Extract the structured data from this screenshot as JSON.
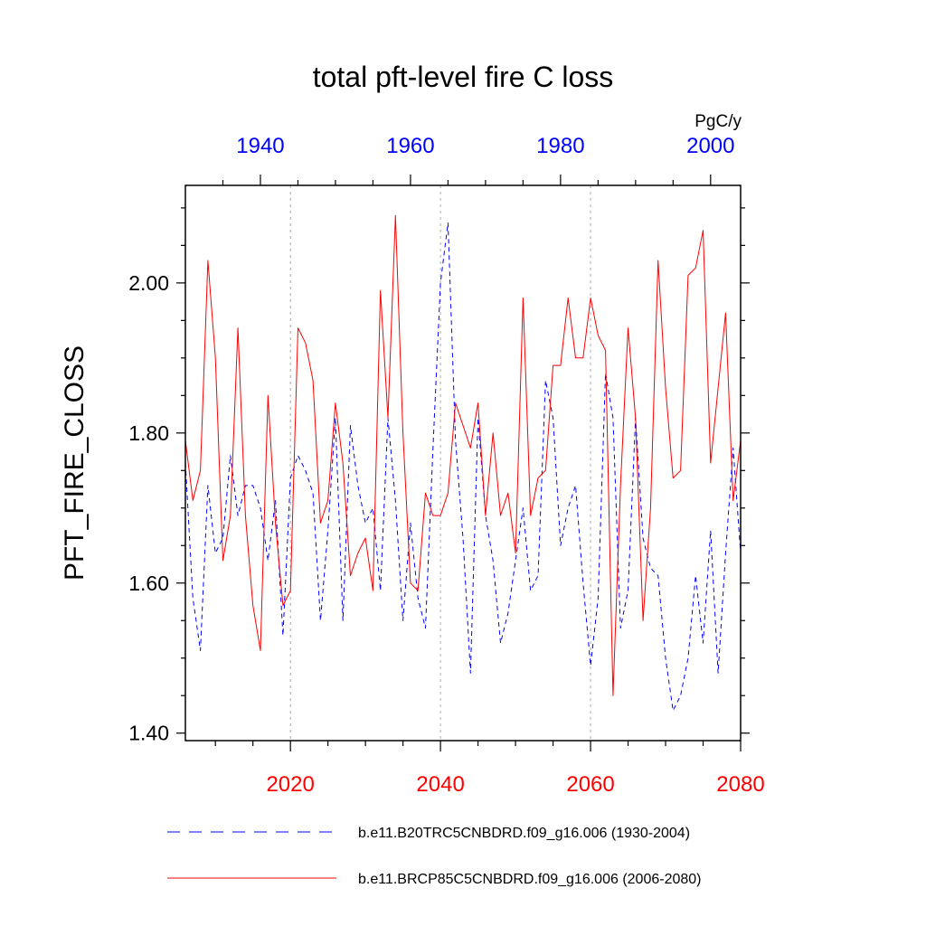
{
  "chart_data": {
    "type": "line",
    "title": "total pft-level fire C loss",
    "ylabel": "PFT_FIRE_CLOSS",
    "units": "PgC/y",
    "ylim": [
      1.39,
      2.13
    ],
    "yticks": [
      1.4,
      1.6,
      1.8,
      2.0
    ],
    "ytick_labels": [
      "1.40",
      "1.60",
      "1.80",
      "2.00"
    ],
    "bottom_axis": {
      "range": [
        2006,
        2080
      ],
      "ticks": [
        2020,
        2040,
        2060,
        2080
      ],
      "labels": [
        "2020",
        "2040",
        "2060",
        "2080"
      ],
      "color": "#ff0000"
    },
    "top_axis": {
      "range": [
        1930,
        2004
      ],
      "ticks": [
        1940,
        1960,
        1980,
        2000
      ],
      "labels": [
        "1940",
        "1960",
        "1980",
        "2000"
      ],
      "color": "#0000ff"
    },
    "gridlines_x": [
      2020,
      2040,
      2060
    ],
    "series": [
      {
        "name": "b.e11.B20TRC5CNBDRD.f09_g16.006 (1930-2004)",
        "axis": "top",
        "color": "#0000ff",
        "dash": "dashed",
        "x": [
          1930,
          1931,
          1932,
          1933,
          1934,
          1935,
          1936,
          1937,
          1938,
          1939,
          1940,
          1941,
          1942,
          1943,
          1944,
          1945,
          1946,
          1947,
          1948,
          1949,
          1950,
          1951,
          1952,
          1953,
          1954,
          1955,
          1956,
          1957,
          1958,
          1959,
          1960,
          1961,
          1962,
          1963,
          1964,
          1965,
          1966,
          1967,
          1968,
          1969,
          1970,
          1971,
          1972,
          1973,
          1974,
          1975,
          1976,
          1977,
          1978,
          1979,
          1980,
          1981,
          1982,
          1983,
          1984,
          1985,
          1986,
          1987,
          1988,
          1989,
          1990,
          1991,
          1992,
          1993,
          1994,
          1995,
          1996,
          1997,
          1998,
          1999,
          2000,
          2001,
          2002,
          2003,
          2004
        ],
        "values": [
          1.76,
          1.58,
          1.51,
          1.73,
          1.64,
          1.66,
          1.77,
          1.69,
          1.73,
          1.73,
          1.7,
          1.63,
          1.71,
          1.53,
          1.74,
          1.77,
          1.75,
          1.72,
          1.55,
          1.67,
          1.82,
          1.55,
          1.81,
          1.73,
          1.68,
          1.7,
          1.59,
          1.82,
          1.71,
          1.55,
          1.68,
          1.58,
          1.54,
          1.78,
          2.0,
          2.08,
          1.79,
          1.66,
          1.48,
          1.82,
          1.69,
          1.63,
          1.52,
          1.56,
          1.63,
          1.7,
          1.59,
          1.61,
          1.87,
          1.82,
          1.65,
          1.7,
          1.73,
          1.6,
          1.49,
          1.58,
          1.88,
          1.82,
          1.54,
          1.59,
          1.82,
          1.66,
          1.62,
          1.61,
          1.5,
          1.43,
          1.45,
          1.5,
          1.61,
          1.52,
          1.67,
          1.48,
          1.64,
          1.78,
          1.64
        ]
      },
      {
        "name": "b.e11.BRCP85C5CNBDRD.f09_g16.006 (2006-2080)",
        "axis": "bottom",
        "color": "#ff0000",
        "dash": "solid",
        "x": [
          2006,
          2007,
          2008,
          2009,
          2010,
          2011,
          2012,
          2013,
          2014,
          2015,
          2016,
          2017,
          2018,
          2019,
          2020,
          2021,
          2022,
          2023,
          2024,
          2025,
          2026,
          2027,
          2028,
          2029,
          2030,
          2031,
          2032,
          2033,
          2034,
          2035,
          2036,
          2037,
          2038,
          2039,
          2040,
          2041,
          2042,
          2043,
          2044,
          2045,
          2046,
          2047,
          2048,
          2049,
          2050,
          2051,
          2052,
          2053,
          2054,
          2055,
          2056,
          2057,
          2058,
          2059,
          2060,
          2061,
          2062,
          2063,
          2064,
          2065,
          2066,
          2067,
          2068,
          2069,
          2070,
          2071,
          2072,
          2073,
          2074,
          2075,
          2076,
          2077,
          2078,
          2079,
          2080
        ],
        "values": [
          1.79,
          1.71,
          1.75,
          2.03,
          1.9,
          1.63,
          1.69,
          1.94,
          1.69,
          1.57,
          1.51,
          1.85,
          1.68,
          1.57,
          1.59,
          1.94,
          1.92,
          1.87,
          1.68,
          1.71,
          1.84,
          1.76,
          1.61,
          1.64,
          1.66,
          1.59,
          1.99,
          1.82,
          2.09,
          1.8,
          1.6,
          1.59,
          1.72,
          1.69,
          1.69,
          1.72,
          1.84,
          1.81,
          1.78,
          1.84,
          1.69,
          1.8,
          1.69,
          1.72,
          1.64,
          1.98,
          1.69,
          1.74,
          1.75,
          1.89,
          1.89,
          1.98,
          1.9,
          1.9,
          1.98,
          1.93,
          1.91,
          1.45,
          1.73,
          1.94,
          1.82,
          1.55,
          1.7,
          2.03,
          1.86,
          1.74,
          1.75,
          2.01,
          2.02,
          2.07,
          1.76,
          1.86,
          1.96,
          1.71,
          1.79
        ]
      }
    ],
    "legend": [
      {
        "label": "b.e11.B20TRC5CNBDRD.f09_g16.006 (1930-2004)",
        "color": "#0000ff",
        "dash": "dashed"
      },
      {
        "label": "b.e11.BRCP85C5CNBDRD.f09_g16.006 (2006-2080)",
        "color": "#ff0000",
        "dash": "solid"
      }
    ]
  }
}
